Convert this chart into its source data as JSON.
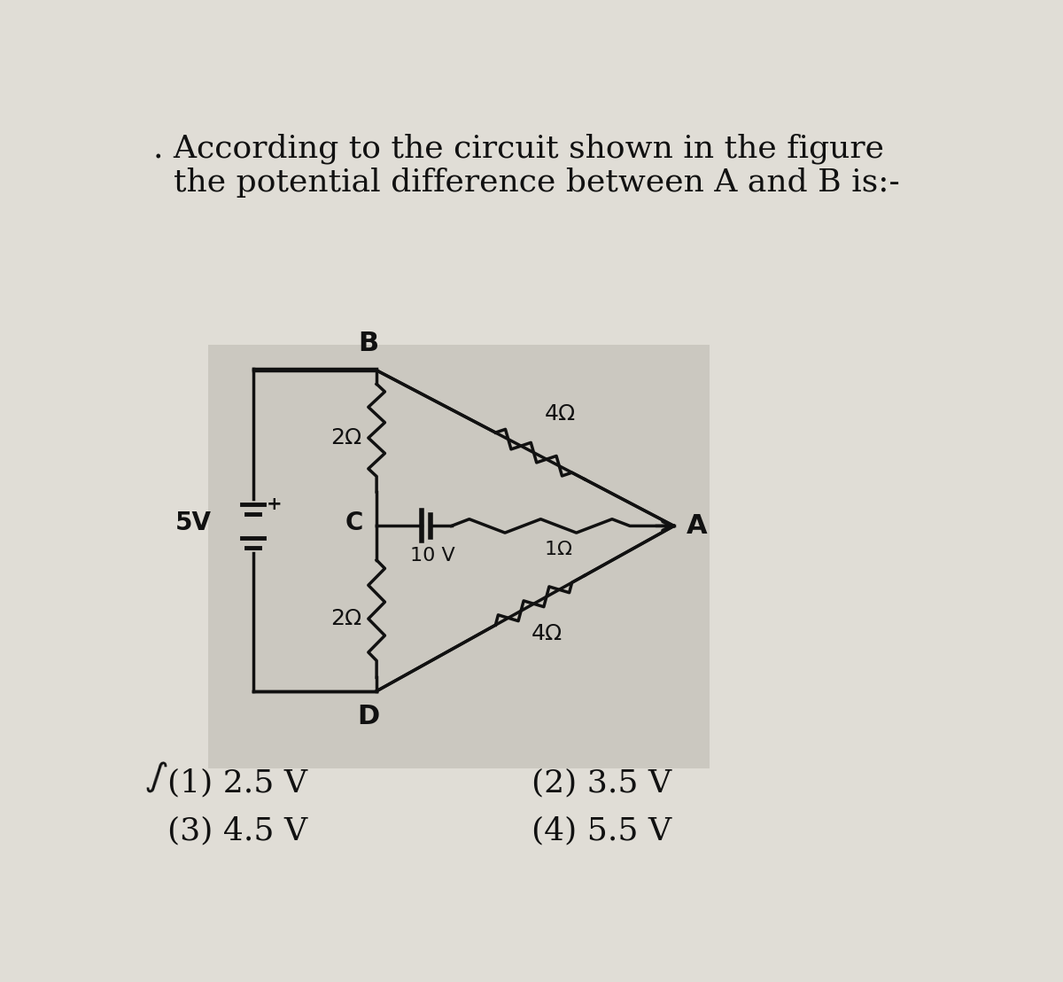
{
  "bg_color": "#cbc8c0",
  "page_bg": "#e0ddd6",
  "title_line1": ". According to the circuit shown in the figure",
  "title_line2": "  the potential difference between A and B is:-",
  "title_fontsize": 26,
  "options": [
    "(1) 2.5 V",
    "(2) 3.5 V",
    "(3) 4.5 V",
    "(4) 5.5 V"
  ],
  "option_fontsize": 26,
  "line_color": "#111111",
  "label_fontsize": 18
}
